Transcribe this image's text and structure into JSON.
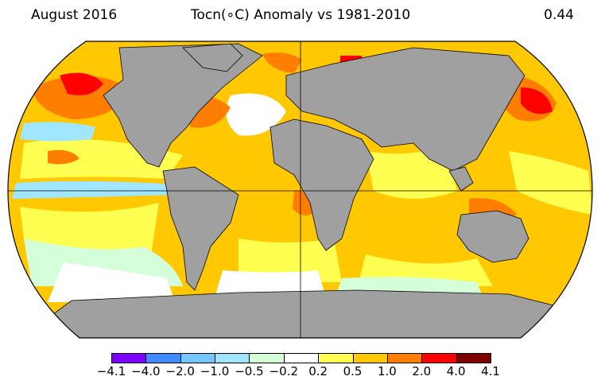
{
  "header": {
    "left": "August 2016",
    "center": "Tocn(∘C) Anomaly vs 1981-2010",
    "right": "0.44"
  },
  "colorbar": {
    "colors": [
      "#7f00ff",
      "#3f8cff",
      "#74c6ff",
      "#a0e6ff",
      "#d4ffd9",
      "#ffffff",
      "#ffff52",
      "#ffc800",
      "#ff7e00",
      "#ff0000",
      "#800000"
    ],
    "labels": [
      "−4.1",
      "−4.0",
      "−2.0",
      "−1.0",
      "−0.5",
      "−0.2",
      "0.2",
      "0.5",
      "1.0",
      "2.0",
      "4.0",
      "4.1"
    ]
  },
  "colors": {
    "land": "#a0a0a0",
    "ocean_base": "#ffc800",
    "coast": "#000000"
  }
}
